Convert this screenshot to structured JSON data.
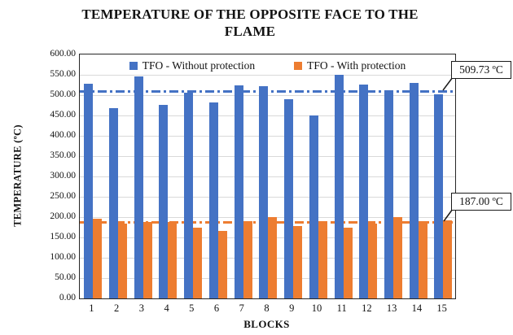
{
  "chart_data": {
    "type": "bar",
    "title": "TEMPERATURE OF THE OPPOSITE FACE TO THE FLAME",
    "title_lines": [
      "TEMPERATURE OF THE OPPOSITE FACE TO THE",
      "FLAME"
    ],
    "xlabel": "BLOCKS",
    "ylabel": "TEMPERATURE (ºC)",
    "ylim": [
      0,
      600
    ],
    "ytick_step": 50,
    "yticks": [
      "600.00",
      "550.00",
      "500.00",
      "450.00",
      "400.00",
      "350.00",
      "300.00",
      "250.00",
      "200.00",
      "150.00",
      "100.00",
      "50.00",
      "0.00"
    ],
    "grid": true,
    "categories": [
      "1",
      "2",
      "3",
      "4",
      "5",
      "6",
      "7",
      "8",
      "9",
      "10",
      "11",
      "12",
      "13",
      "14",
      "15"
    ],
    "series": [
      {
        "name": "TFO - Without protection",
        "color": "#4472C4",
        "values": [
          528,
          468,
          547,
          476,
          507,
          482,
          525,
          523,
          490,
          450,
          551,
          527,
          512,
          530,
          502
        ]
      },
      {
        "name": "TFO - With protection",
        "color": "#ED7D31",
        "values": [
          196,
          184,
          188,
          188,
          175,
          166,
          190,
          201,
          178,
          190,
          175,
          184,
          201,
          191,
          192
        ]
      }
    ],
    "reference_lines": [
      {
        "label": "509.73 ºC",
        "value": 509.73,
        "color": "#4472C4"
      },
      {
        "label": "187.00 ºC",
        "value": 187.0,
        "color": "#ED7D31"
      }
    ],
    "legend": {
      "position": "top-inside",
      "items": [
        {
          "label": "TFO - Without protection",
          "color": "#4472C4"
        },
        {
          "label": "TFO - With protection",
          "color": "#ED7D31"
        }
      ]
    }
  }
}
